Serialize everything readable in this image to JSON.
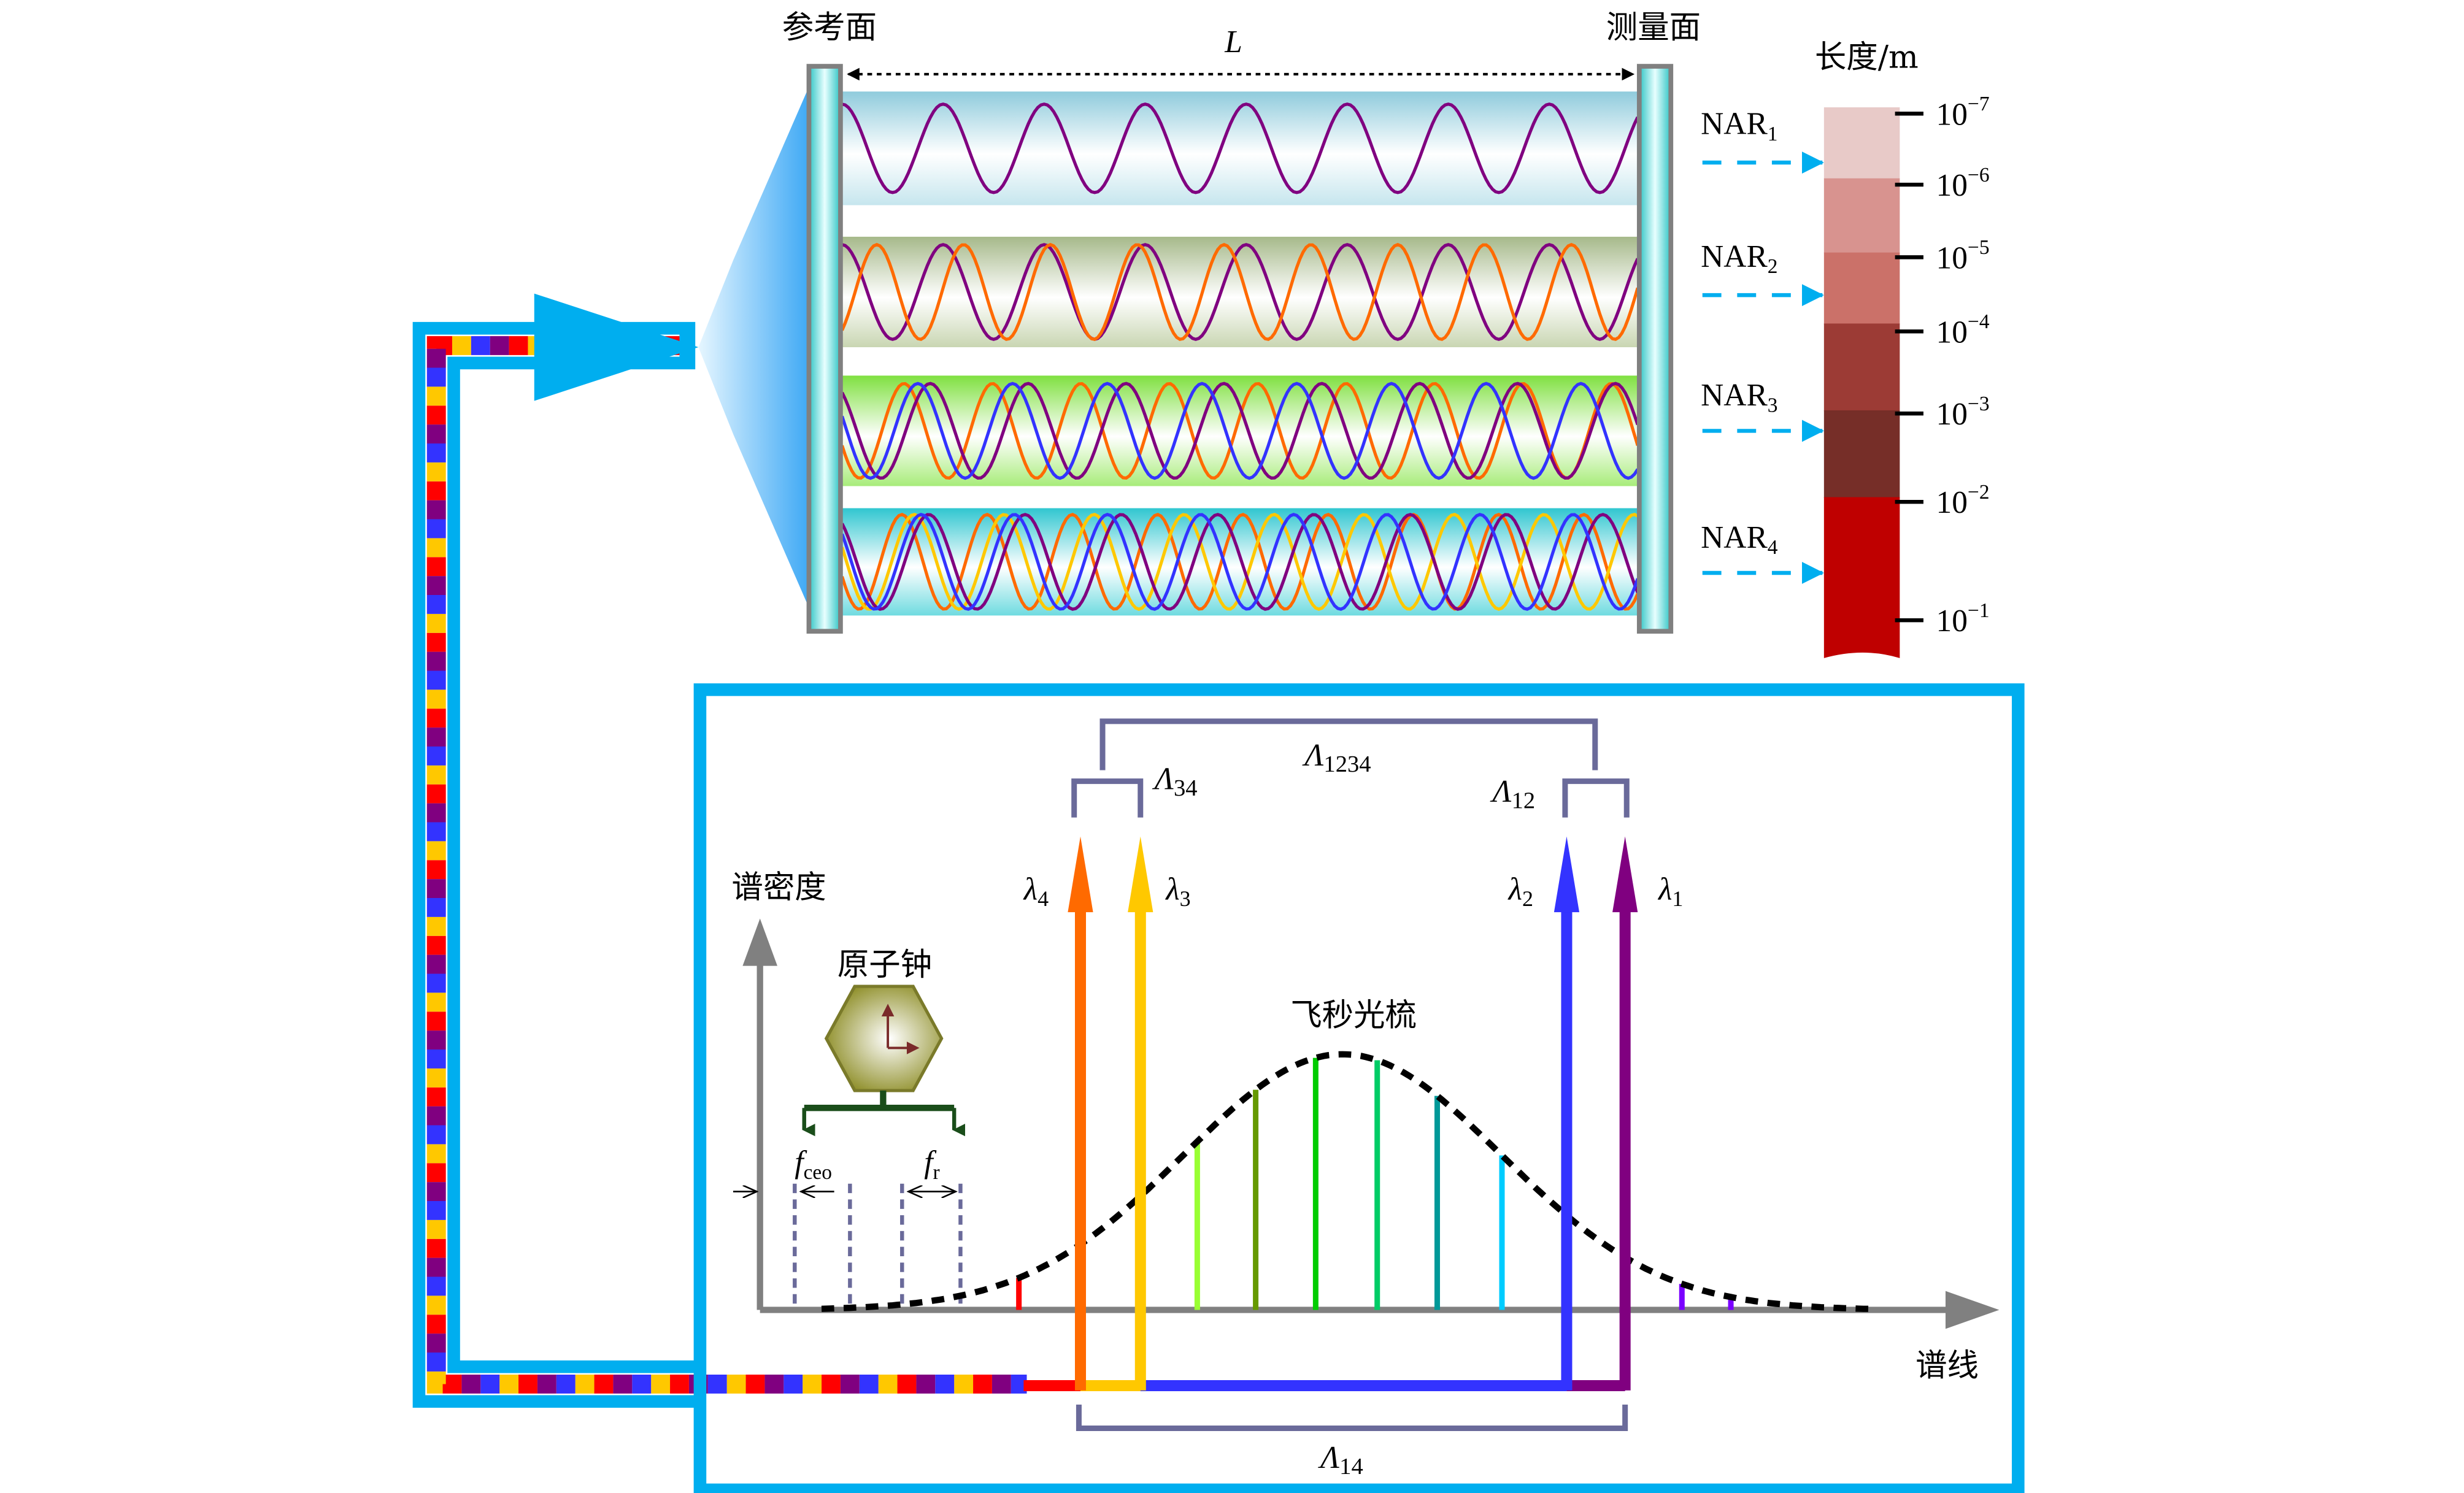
{
  "cavity": {
    "reference_label": "参考面",
    "measurement_label": "测量面",
    "length_label": "L"
  },
  "scale_bar": {
    "title": "长度/m",
    "ticks": [
      {
        "base": "10",
        "exp": "−7"
      },
      {
        "base": "10",
        "exp": "−6"
      },
      {
        "base": "10",
        "exp": "−5"
      },
      {
        "base": "10",
        "exp": "−4"
      },
      {
        "base": "10",
        "exp": "−3"
      },
      {
        "base": "10",
        "exp": "−2"
      },
      {
        "base": "10",
        "exp": "−1"
      }
    ],
    "segment_colors": [
      "#e8cac8",
      "#d8938f",
      "#cb7169",
      "#9c3b35",
      "#762e28",
      "#bf0000"
    ],
    "nar": [
      {
        "name": "NAR",
        "sub": "1"
      },
      {
        "name": "NAR",
        "sub": "2"
      },
      {
        "name": "NAR",
        "sub": "3"
      },
      {
        "name": "NAR",
        "sub": "4"
      }
    ]
  },
  "spectrum": {
    "y_axis_label": "谱密度",
    "x_axis_label": "谱线",
    "clock_label": "原子钟",
    "comb_label": "飞秒光梳",
    "fceo": {
      "main": "f",
      "sub": "ceo"
    },
    "fr": {
      "main": "f",
      "sub": "r"
    },
    "lambdas": [
      {
        "main": "λ",
        "sub": "4",
        "color": "#ff6a00"
      },
      {
        "main": "λ",
        "sub": "3",
        "color": "#ffc800"
      },
      {
        "main": "λ",
        "sub": "2",
        "color": "#3333ff"
      },
      {
        "main": "λ",
        "sub": "1",
        "color": "#800080"
      }
    ],
    "synthetic": [
      {
        "main": "Λ",
        "sub": "1234"
      },
      {
        "main": "Λ",
        "sub": "34"
      },
      {
        "main": "Λ",
        "sub": "12"
      },
      {
        "main": "Λ",
        "sub": "14"
      }
    ]
  },
  "colors": {
    "fiber": "#00aeef",
    "bracket": "#6a6a9a",
    "axis": "#808080"
  }
}
